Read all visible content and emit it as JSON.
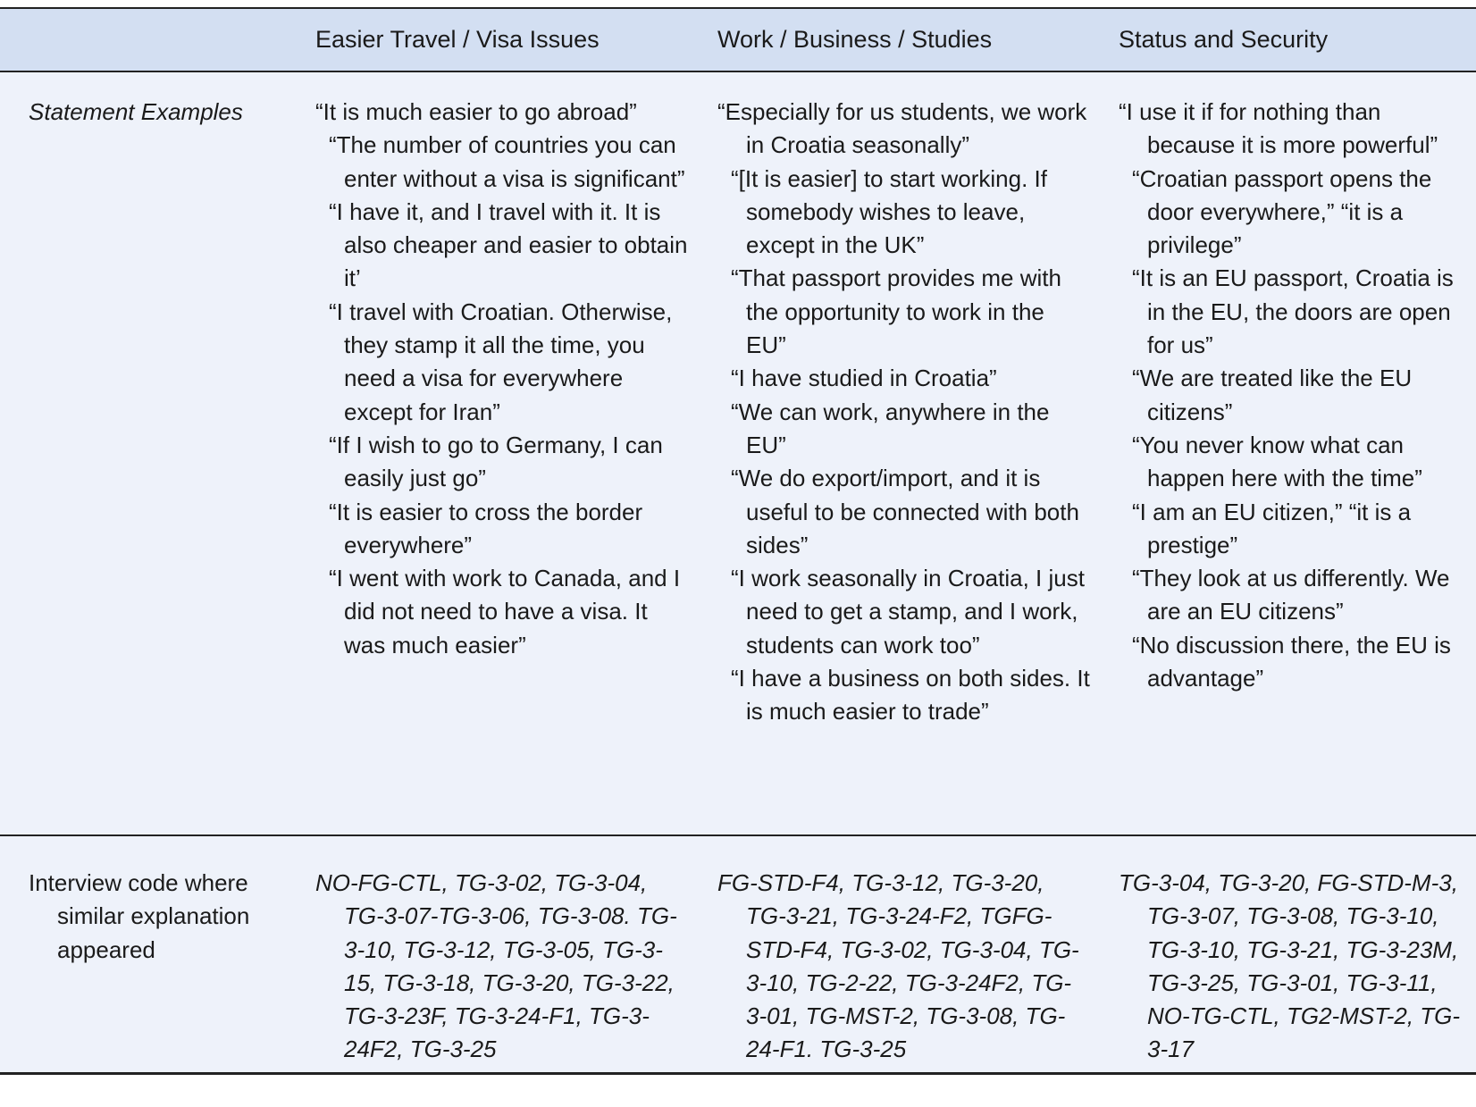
{
  "header": {
    "col1": "",
    "col2": "Easier Travel / Visa Issues",
    "col3": "Work / Business / Studies",
    "col4": "Status and Security"
  },
  "rows": {
    "statements": {
      "label": "Statement Examples",
      "travel": [
        "“It is much easier to go abroad”",
        "“The number of countries you can enter without a visa is significant”",
        "“I have it, and I travel with it. It is also cheaper and easier to obtain it’",
        "“I travel with Croatian. Otherwise, they stamp it all the time, you need a visa for everywhere except for Iran”",
        "“If I wish to go to Germany, I can easily just go”",
        "“It is easier to cross the border everywhere”",
        "“I went with work to Canada, and I did not need to have a visa. It was much easier”"
      ],
      "work": [
        "“Especially for us students, we work in Croatia seasonally”",
        "“[It is easier] to start working. If somebody wishes to leave, except in the UK”",
        "“That passport provides me with the opportunity to work in the EU”",
        "“I have studied in Croatia”",
        "“We can work, anywhere in the EU”",
        "“We do export/import, and it is useful to be connected with both sides”",
        "“I work seasonally in Croatia, I just need to get a stamp, and I work, students can work too”",
        "“I have a business on both sides. It is much easier to trade”"
      ],
      "status": [
        "“I use it if for nothing than because it is more powerful”",
        "“Croatian passport opens the door everywhere,” “it is a privilege”",
        "“It is an EU passport, Croatia is in the EU, the doors are open for us”",
        "“We are treated like the EU citizens”",
        "“You never know what can happen here with the time”",
        "“I am an EU citizen,” “it is a prestige”",
        "“They look at us differently. We are an EU citizens”",
        "“No discussion there, the EU is advantage”"
      ]
    },
    "codes": {
      "label": "Interview code where similar explanation appeared",
      "travel": "NO-FG-CTL, TG-3-02, TG-3-04, TG-3-07-TG-3-06, TG-3-08. TG-3-10, TG-3-12, TG-3-05, TG-3-15, TG-3-18, TG-3-20, TG-3-22, TG-3-23F, TG-3-24-F1, TG-3-24F2, TG-3-25",
      "work": "FG-STD-F4, TG-3-12, TG-3-20, TG-3-21, TG-3-24-F2, TGFG-STD-F4, TG-3-02, TG-3-04, TG-3-10, TG-2-22, TG-3-24F2, TG-3-01, TG-MST-2, TG-3-08, TG-24-F1. TG-3-25",
      "status": "TG-3-04, TG-3-20, FG-STD-M-3, TG-3-07, TG-3-08, TG-3-10, TG-3-10, TG-3-21, TG-3-23M, TG-3-25, TG-3-01, TG-3-11, NO-TG-CTL, TG2-MST-2, TG-3-17"
    }
  },
  "colors": {
    "header_bg": "#d3dff2",
    "body_bg": "#eef2fa",
    "rule": "#222222"
  }
}
